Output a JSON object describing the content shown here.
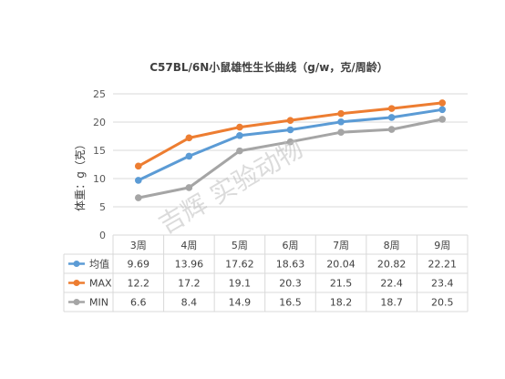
{
  "chart_data": {
    "type": "line",
    "title": "C57BL/6N小鼠雄性生长曲线（g/w，克/周龄）",
    "ylabel": "体重：g（克）",
    "xlabel": "",
    "categories": [
      "3周",
      "4周",
      "5周",
      "6周",
      "7周",
      "8周",
      "9周"
    ],
    "ylim": [
      0,
      25
    ],
    "yticks": [
      0,
      5,
      10,
      15,
      20,
      25
    ],
    "grid": true,
    "legend": "data-table",
    "series": [
      {
        "name": "均值",
        "color": "#5b9bd5",
        "values": [
          9.69,
          13.96,
          17.62,
          18.63,
          20.04,
          20.82,
          22.21
        ]
      },
      {
        "name": "MAX",
        "color": "#ed7d31",
        "values": [
          12.2,
          17.2,
          19.1,
          20.3,
          21.5,
          22.4,
          23.4
        ]
      },
      {
        "name": "MIN",
        "color": "#a5a5a5",
        "values": [
          6.6,
          8.4,
          14.9,
          16.5,
          18.2,
          18.7,
          20.5
        ]
      }
    ]
  },
  "watermark": "吉辉 实验动物",
  "colors": {
    "grid": "#d9d9d9",
    "text": "#595959"
  }
}
